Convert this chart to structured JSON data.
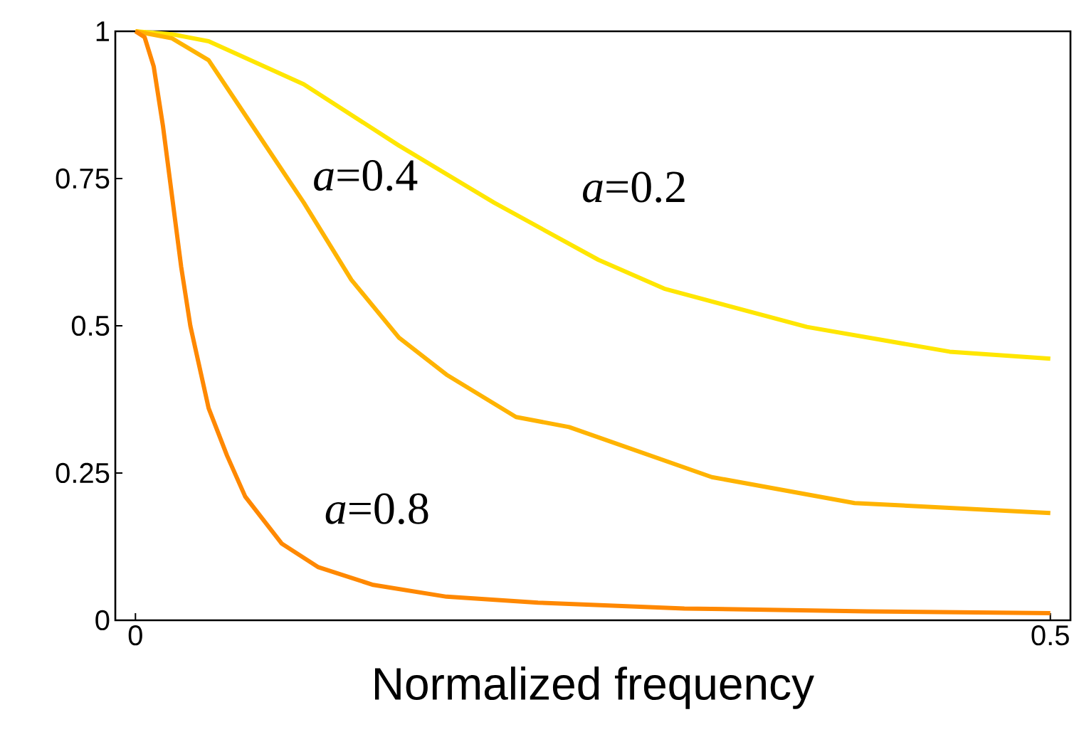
{
  "chart_data": {
    "type": "line",
    "xlabel": "Normalized frequency",
    "xlim": [
      -0.011,
      0.511
    ],
    "ylim": [
      0,
      1
    ],
    "xticks": [
      0,
      0.5
    ],
    "yticks": [
      0,
      0.25,
      0.5,
      0.75,
      1
    ],
    "grid": false,
    "legend": false,
    "marker": "none",
    "line_style": "solid",
    "series": [
      {
        "name": "*a*=0.2",
        "color": "#ffe600",
        "x": [
          0,
          0.02,
          0.04,
          0.092,
          0.144,
          0.196,
          0.253,
          0.289,
          0.367,
          0.445,
          0.5
        ],
        "values": [
          1,
          0.995,
          0.983,
          0.91,
          0.806,
          0.709,
          0.612,
          0.563,
          0.498,
          0.456,
          0.444
        ]
      },
      {
        "name": "*a*=0.4",
        "color": "#ffb300",
        "x": [
          0,
          0.02,
          0.04,
          0.066,
          0.092,
          0.118,
          0.144,
          0.17,
          0.208,
          0.237,
          0.315,
          0.393,
          0.5
        ],
        "values": [
          1,
          0.988,
          0.951,
          0.83,
          0.709,
          0.578,
          0.48,
          0.417,
          0.345,
          0.328,
          0.243,
          0.199,
          0.182
        ]
      },
      {
        "name": "*a*=0.8",
        "color": "#ff8800",
        "x": [
          0,
          0.005,
          0.01,
          0.015,
          0.02,
          0.025,
          0.03,
          0.04,
          0.05,
          0.06,
          0.08,
          0.1,
          0.13,
          0.17,
          0.22,
          0.3,
          0.4,
          0.5
        ],
        "values": [
          1,
          0.99,
          0.94,
          0.84,
          0.72,
          0.6,
          0.5,
          0.36,
          0.28,
          0.21,
          0.13,
          0.09,
          0.06,
          0.04,
          0.03,
          0.02,
          0.015,
          0.012
        ]
      }
    ]
  }
}
